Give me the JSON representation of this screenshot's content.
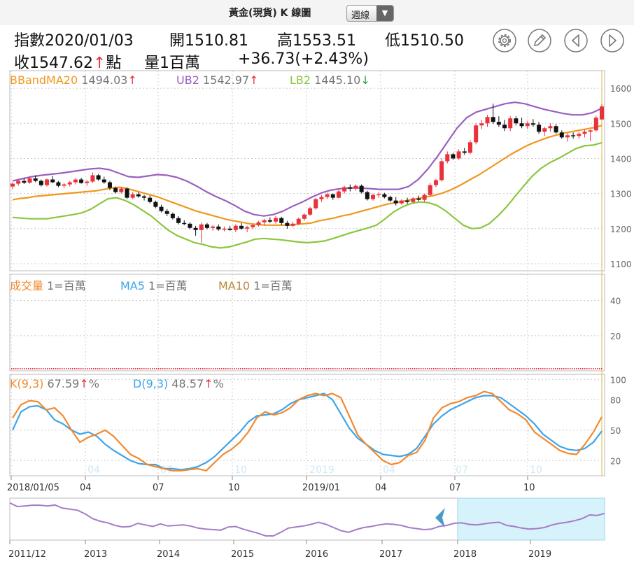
{
  "header": {
    "title": "黃金(現貨) K 線圖",
    "period_label": "週線",
    "line1": [
      "指數2020/01/03",
      "開1510.81",
      "高1553.51",
      "低1510.50"
    ],
    "close_text": "收1547.62",
    "close_arrow": "↑",
    "close_unit": "點",
    "volume_text": "量1百萬",
    "change_text": "+36.73(+2.43%)"
  },
  "toolbar": {
    "settings_icon": "gear-icon",
    "draw_icon": "pencil-icon",
    "prev_icon": "chevron-left-icon",
    "next_icon": "chevron-right-icon"
  },
  "colors": {
    "up": "#e8323c",
    "down": "#111111",
    "bband": "#f0981e",
    "ub": "#9b5fc0",
    "lb": "#8cc63e",
    "k": "#f28a30",
    "d": "#3da5ea",
    "grid": "#cccccc",
    "navigator": "#a57cc6",
    "navigator_window": "#d6f2fb"
  },
  "legends": {
    "bband": {
      "name": "BBandMA20",
      "value": "1494.03",
      "arrow": "↑"
    },
    "ub": {
      "name": "UB2",
      "value": "1542.97",
      "arrow": "↑"
    },
    "lb": {
      "name": "LB2",
      "value": "1445.10",
      "arrow": "↓"
    },
    "vol": {
      "name": "成交量",
      "unit": "1=百萬"
    },
    "ma5": {
      "name": "MA5",
      "unit": "1=百萬"
    },
    "ma10": {
      "name": "MA10",
      "unit": "1=百萬"
    },
    "k": {
      "name": "K(9,3)",
      "value": "67.59",
      "arrow": "↑",
      "unit": "%"
    },
    "d": {
      "name": "D(9,3)",
      "value": "48.57",
      "arrow": "↑",
      "unit": "%"
    }
  },
  "chart_data": {
    "type": "candlestick",
    "x_axis_labels": [
      "2018/01/05",
      "04",
      "07",
      "10",
      "2019/01",
      "04",
      "07",
      "10"
    ],
    "kd_faint_labels": [
      "04",
      "07",
      "10",
      "2019",
      "04",
      "07",
      "10"
    ],
    "price_yticks": [
      1100,
      1200,
      1300,
      1400,
      1500,
      1600
    ],
    "price_ylim": [
      1080,
      1650
    ],
    "volume_yticks": [
      20,
      40
    ],
    "volume_ylim": [
      0,
      55
    ],
    "kd_yticks": [
      20,
      50,
      80,
      100
    ],
    "kd_ylim": [
      5,
      105
    ],
    "series": [
      {
        "name": "K線",
        "kind": "ohlc",
        "values": [
          [
            1320,
            1332,
            1313,
            1328
          ],
          [
            1328,
            1340,
            1322,
            1336
          ],
          [
            1336,
            1344,
            1327,
            1331
          ],
          [
            1331,
            1348,
            1328,
            1343
          ],
          [
            1343,
            1352,
            1332,
            1336
          ],
          [
            1336,
            1340,
            1320,
            1324
          ],
          [
            1324,
            1343,
            1320,
            1340
          ],
          [
            1340,
            1350,
            1330,
            1332
          ],
          [
            1332,
            1336,
            1318,
            1322
          ],
          [
            1322,
            1330,
            1315,
            1326
          ],
          [
            1326,
            1336,
            1320,
            1332
          ],
          [
            1332,
            1344,
            1326,
            1340
          ],
          [
            1340,
            1345,
            1328,
            1330
          ],
          [
            1330,
            1338,
            1322,
            1334
          ],
          [
            1334,
            1360,
            1330,
            1352
          ],
          [
            1352,
            1356,
            1336,
            1340
          ],
          [
            1340,
            1348,
            1328,
            1332
          ],
          [
            1332,
            1336,
            1310,
            1316
          ],
          [
            1316,
            1320,
            1300,
            1304
          ],
          [
            1304,
            1318,
            1300,
            1314
          ],
          [
            1314,
            1318,
            1284,
            1288
          ],
          [
            1288,
            1304,
            1284,
            1298
          ],
          [
            1298,
            1304,
            1288,
            1292
          ],
          [
            1292,
            1296,
            1280,
            1288
          ],
          [
            1288,
            1294,
            1272,
            1276
          ],
          [
            1276,
            1280,
            1258,
            1262
          ],
          [
            1262,
            1268,
            1246,
            1250
          ],
          [
            1250,
            1256,
            1236,
            1242
          ],
          [
            1242,
            1246,
            1226,
            1230
          ],
          [
            1230,
            1236,
            1212,
            1216
          ],
          [
            1216,
            1224,
            1210,
            1214
          ],
          [
            1214,
            1218,
            1198,
            1202
          ],
          [
            1202,
            1208,
            1180,
            1196
          ],
          [
            1196,
            1218,
            1160,
            1212
          ],
          [
            1212,
            1216,
            1198,
            1202
          ],
          [
            1202,
            1210,
            1194,
            1206
          ],
          [
            1206,
            1212,
            1194,
            1198
          ],
          [
            1198,
            1206,
            1192,
            1200
          ],
          [
            1200,
            1208,
            1194,
            1196
          ],
          [
            1196,
            1212,
            1190,
            1208
          ],
          [
            1208,
            1216,
            1196,
            1200
          ],
          [
            1200,
            1208,
            1190,
            1204
          ],
          [
            1204,
            1214,
            1198,
            1210
          ],
          [
            1210,
            1222,
            1206,
            1218
          ],
          [
            1218,
            1228,
            1210,
            1224
          ],
          [
            1224,
            1232,
            1216,
            1220
          ],
          [
            1220,
            1236,
            1214,
            1230
          ],
          [
            1230,
            1234,
            1210,
            1216
          ],
          [
            1216,
            1222,
            1200,
            1208
          ],
          [
            1208,
            1220,
            1204,
            1214
          ],
          [
            1214,
            1232,
            1210,
            1228
          ],
          [
            1228,
            1244,
            1222,
            1240
          ],
          [
            1240,
            1262,
            1236,
            1258
          ],
          [
            1258,
            1288,
            1254,
            1284
          ],
          [
            1284,
            1296,
            1276,
            1290
          ],
          [
            1290,
            1302,
            1284,
            1298
          ],
          [
            1298,
            1300,
            1282,
            1288
          ],
          [
            1288,
            1310,
            1286,
            1306
          ],
          [
            1306,
            1322,
            1300,
            1318
          ],
          [
            1318,
            1326,
            1306,
            1314
          ],
          [
            1314,
            1326,
            1308,
            1322
          ],
          [
            1322,
            1326,
            1300,
            1304
          ],
          [
            1304,
            1308,
            1280,
            1284
          ],
          [
            1284,
            1300,
            1280,
            1296
          ],
          [
            1296,
            1304,
            1288,
            1298
          ],
          [
            1298,
            1302,
            1286,
            1290
          ],
          [
            1290,
            1294,
            1276,
            1280
          ],
          [
            1280,
            1290,
            1266,
            1272
          ],
          [
            1272,
            1284,
            1268,
            1280
          ],
          [
            1280,
            1288,
            1270,
            1276
          ],
          [
            1276,
            1290,
            1272,
            1286
          ],
          [
            1286,
            1294,
            1278,
            1282
          ],
          [
            1282,
            1300,
            1276,
            1296
          ],
          [
            1296,
            1330,
            1292,
            1324
          ],
          [
            1324,
            1342,
            1318,
            1338
          ],
          [
            1338,
            1400,
            1334,
            1392
          ],
          [
            1392,
            1420,
            1386,
            1412
          ],
          [
            1412,
            1416,
            1396,
            1400
          ],
          [
            1400,
            1426,
            1396,
            1420
          ],
          [
            1420,
            1430,
            1410,
            1416
          ],
          [
            1416,
            1452,
            1412,
            1446
          ],
          [
            1446,
            1500,
            1440,
            1494
          ],
          [
            1494,
            1510,
            1484,
            1500
          ],
          [
            1500,
            1524,
            1490,
            1518
          ],
          [
            1518,
            1556,
            1498,
            1504
          ],
          [
            1504,
            1520,
            1490,
            1496
          ],
          [
            1496,
            1510,
            1478,
            1486
          ],
          [
            1486,
            1520,
            1478,
            1514
          ],
          [
            1514,
            1520,
            1494,
            1500
          ],
          [
            1500,
            1516,
            1486,
            1492
          ],
          [
            1492,
            1506,
            1484,
            1500
          ],
          [
            1500,
            1512,
            1490,
            1496
          ],
          [
            1496,
            1504,
            1470,
            1476
          ],
          [
            1476,
            1490,
            1464,
            1486
          ],
          [
            1486,
            1500,
            1476,
            1492
          ],
          [
            1492,
            1498,
            1470,
            1474
          ],
          [
            1474,
            1480,
            1456,
            1460
          ],
          [
            1460,
            1472,
            1448,
            1466
          ],
          [
            1466,
            1474,
            1456,
            1464
          ],
          [
            1464,
            1476,
            1456,
            1470
          ],
          [
            1470,
            1482,
            1460,
            1476
          ],
          [
            1476,
            1482,
            1450,
            1480
          ],
          [
            1480,
            1522,
            1476,
            1516
          ],
          [
            1511,
            1554,
            1510,
            1548
          ]
        ]
      },
      {
        "name": "BBandMA20",
        "kind": "line",
        "values": [
          1282,
          1286,
          1288,
          1292,
          1294,
          1296,
          1298,
          1300,
          1302,
          1304,
          1306,
          1308,
          1312,
          1316,
          1318,
          1314,
          1308,
          1302,
          1296,
          1290,
          1282,
          1274,
          1266,
          1258,
          1250,
          1244,
          1238,
          1232,
          1226,
          1222,
          1218,
          1214,
          1212,
          1210,
          1210,
          1210,
          1210,
          1212,
          1214,
          1216,
          1222,
          1226,
          1230,
          1236,
          1240,
          1246,
          1252,
          1258,
          1264,
          1270,
          1274,
          1278,
          1282,
          1286,
          1290,
          1294,
          1300,
          1308,
          1318,
          1330,
          1342,
          1354,
          1368,
          1382,
          1396,
          1410,
          1422,
          1434,
          1444,
          1452,
          1460,
          1466,
          1472,
          1476,
          1480,
          1484,
          1488,
          1494
        ]
      },
      {
        "name": "UB2",
        "kind": "line",
        "values": [
          1336,
          1342,
          1348,
          1352,
          1355,
          1358,
          1362,
          1366,
          1370,
          1372,
          1368,
          1358,
          1348,
          1346,
          1350,
          1354,
          1352,
          1346,
          1336,
          1322,
          1306,
          1292,
          1280,
          1266,
          1250,
          1240,
          1236,
          1240,
          1250,
          1264,
          1276,
          1290,
          1302,
          1310,
          1314,
          1316,
          1316,
          1314,
          1312,
          1312,
          1312,
          1320,
          1340,
          1370,
          1406,
          1446,
          1486,
          1516,
          1532,
          1540,
          1548,
          1556,
          1560,
          1556,
          1548,
          1540,
          1534,
          1528,
          1524,
          1524,
          1530,
          1543
        ]
      },
      {
        "name": "LB2",
        "kind": "line",
        "values": [
          1232,
          1230,
          1228,
          1228,
          1228,
          1232,
          1236,
          1240,
          1245,
          1255,
          1270,
          1285,
          1288,
          1280,
          1268,
          1252,
          1236,
          1215,
          1195,
          1180,
          1170,
          1160,
          1155,
          1148,
          1145,
          1148,
          1155,
          1162,
          1170,
          1172,
          1170,
          1168,
          1165,
          1162,
          1160,
          1162,
          1165,
          1172,
          1180,
          1188,
          1195,
          1202,
          1210,
          1228,
          1248,
          1262,
          1272,
          1276,
          1274,
          1266,
          1250,
          1230,
          1210,
          1200,
          1202,
          1214,
          1236,
          1262,
          1292,
          1322,
          1350,
          1372,
          1388,
          1400,
          1414,
          1428,
          1436,
          1438,
          1445
        ]
      },
      {
        "name": "K(9,3)",
        "kind": "line",
        "values": [
          62,
          75,
          79,
          78,
          70,
          72,
          64,
          50,
          38,
          43,
          46,
          50,
          44,
          35,
          26,
          22,
          16,
          14,
          12,
          10,
          10,
          11,
          12,
          10,
          18,
          26,
          31,
          38,
          48,
          62,
          68,
          65,
          67,
          72,
          80,
          84,
          86,
          84,
          86,
          82,
          64,
          45,
          36,
          28,
          20,
          16,
          18,
          25,
          28,
          40,
          62,
          72,
          76,
          78,
          82,
          84,
          88,
          86,
          78,
          70,
          66,
          60,
          48,
          42,
          36,
          30,
          27,
          26,
          36,
          48,
          63
        ]
      },
      {
        "name": "D(9,3)",
        "kind": "line",
        "values": [
          50,
          68,
          73,
          74,
          70,
          60,
          56,
          50,
          46,
          48,
          44,
          36,
          30,
          25,
          20,
          17,
          16,
          16,
          12,
          12,
          11,
          12,
          14,
          18,
          24,
          32,
          40,
          48,
          58,
          64,
          65,
          66,
          70,
          76,
          80,
          82,
          84,
          86,
          80,
          66,
          52,
          42,
          36,
          30,
          26,
          25,
          24,
          26,
          32,
          44,
          56,
          64,
          70,
          74,
          78,
          82,
          84,
          84,
          82,
          76,
          70,
          64,
          56,
          46,
          40,
          34,
          31,
          30,
          32,
          38,
          49
        ]
      }
    ]
  },
  "navigator": {
    "year_labels": [
      "2011/12",
      "2013",
      "2014",
      "2015",
      "2016",
      "2017",
      "2018",
      "2019"
    ],
    "series": [
      1710,
      1640,
      1650,
      1665,
      1665,
      1650,
      1670,
      1610,
      1590,
      1570,
      1500,
      1410,
      1360,
      1330,
      1280,
      1250,
      1260,
      1320,
      1290,
      1260,
      1310,
      1270,
      1280,
      1290,
      1270,
      1230,
      1210,
      1200,
      1190,
      1250,
      1260,
      1210,
      1170,
      1130,
      1080,
      1080,
      1150,
      1230,
      1250,
      1270,
      1300,
      1340,
      1300,
      1240,
      1180,
      1150,
      1200,
      1240,
      1260,
      1290,
      1310,
      1300,
      1280,
      1240,
      1220,
      1200,
      1210,
      1260,
      1280,
      1320,
      1330,
      1300,
      1290,
      1310,
      1330,
      1340,
      1280,
      1260,
      1230,
      1210,
      1220,
      1240,
      1290,
      1320,
      1340,
      1370,
      1410,
      1480,
      1470,
      1510
    ],
    "window_from_index": 55
  }
}
